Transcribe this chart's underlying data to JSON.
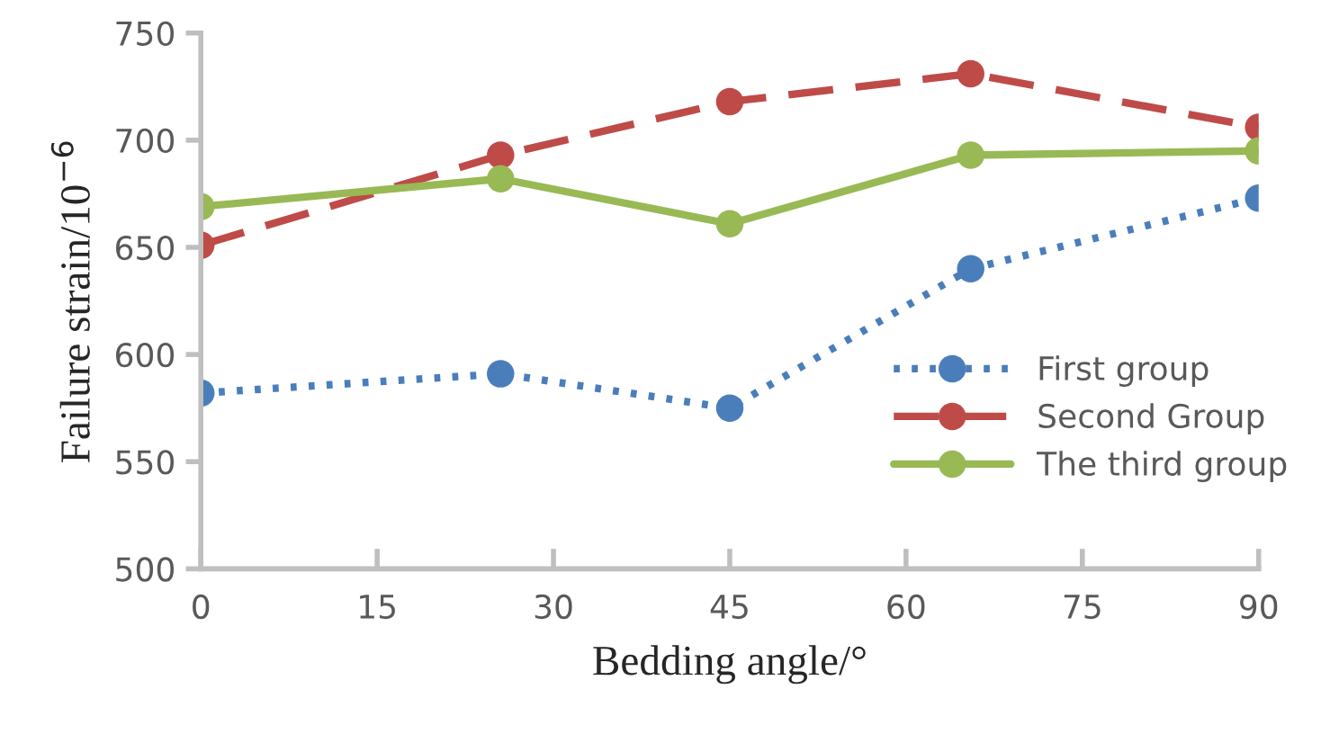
{
  "chart_data": {
    "type": "line",
    "xlabel": "Bedding angle/°",
    "ylabel": "Failure strain/10$^{−6}$",
    "x": [
      0,
      25.5,
      45,
      65.5,
      90
    ],
    "series": [
      {
        "name": "First group",
        "color": "#4a7ebb",
        "values": [
          582,
          591,
          575,
          640,
          673
        ],
        "line_style": "dotted"
      },
      {
        "name": "Second Group",
        "color": "#be4b48",
        "values": [
          651,
          693,
          718,
          731,
          706
        ],
        "line_style": "dashed"
      },
      {
        "name": "The third group",
        "color": "#98b954",
        "values": [
          669,
          682,
          661,
          693,
          695
        ],
        "line_style": "solid"
      }
    ],
    "xlim": [
      0,
      90
    ],
    "xticks": [
      0,
      15,
      30,
      45,
      60,
      75,
      90
    ],
    "ylim": [
      500,
      750
    ],
    "yticks": [
      500,
      550,
      600,
      650,
      700,
      750
    ],
    "marker": "circle",
    "grid": false,
    "legend": "right"
  }
}
